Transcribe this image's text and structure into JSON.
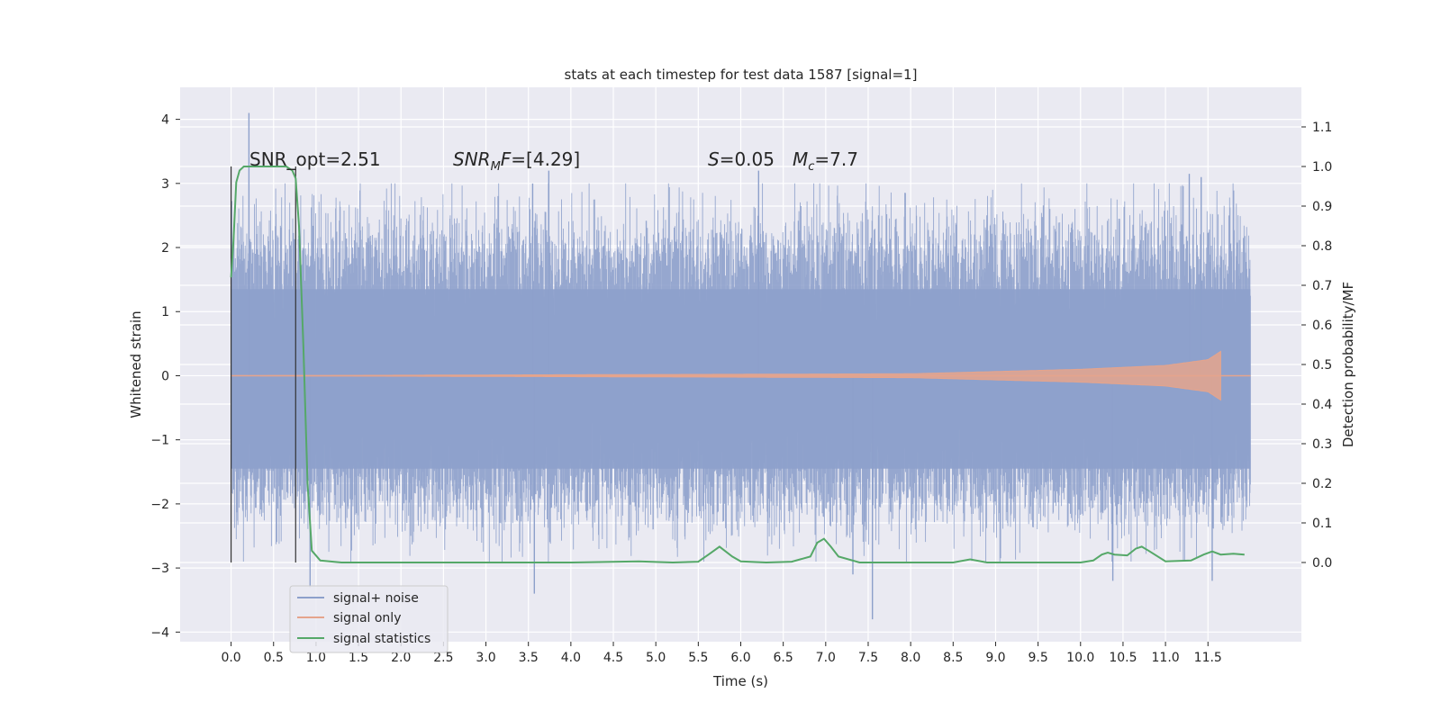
{
  "chart_data": {
    "type": "line",
    "title": "stats at each timestep for test data 1587 [signal=1]",
    "xlabel": "Time (s)",
    "ylabel_left": "Whitened strain",
    "ylabel_right": "Detection probability/MF",
    "xlim": [
      -0.6,
      12.6
    ],
    "ylim_left": [
      -4.15,
      4.5
    ],
    "ylim_right": [
      -0.2,
      1.2
    ],
    "x_ticks": [
      "0.0",
      "0.5",
      "1.0",
      "1.5",
      "2.0",
      "2.5",
      "3.0",
      "3.5",
      "4.0",
      "4.5",
      "5.0",
      "5.5",
      "6.0",
      "6.5",
      "7.0",
      "7.5",
      "8.0",
      "8.5",
      "9.0",
      "9.5",
      "10.0",
      "10.5",
      "11.0",
      "11.5"
    ],
    "y_ticks_left": [
      "4",
      "3",
      "2",
      "1",
      "0",
      "−1",
      "−2",
      "−3",
      "−4"
    ],
    "y_ticks_right": [
      "1.1",
      "1.0",
      "0.9",
      "0.8",
      "0.7",
      "0.6",
      "0.5",
      "0.4",
      "0.3",
      "0.2",
      "0.1",
      "0.0"
    ],
    "grid": true,
    "legend_position": "bottom-left",
    "annotations": {
      "snr_opt": "SNR_opt=2.51",
      "snr_mf": "=[4.29]",
      "snr_mf_symbol": "SNR",
      "snr_mf_subscript": "M",
      "snr_mf_suffix": "F",
      "s_symbol": "S",
      "s_value": "=0.05",
      "mc_symbol": "M",
      "mc_subscript": "c",
      "mc_value": "=7.7"
    },
    "vertical_markers_x": [
      0.0,
      0.76
    ],
    "series": [
      {
        "name": "signal+ noise",
        "color": "#8da0cb",
        "axis": "left",
        "x_range": [
          0.0,
          12.0
        ],
        "typical_band": [
          -1.5,
          1.9
        ],
        "peaks": [
          {
            "x": 0.21,
            "y": 4.1
          },
          {
            "x": 3.74,
            "y": 3.2
          },
          {
            "x": 3.55,
            "y": 3.0
          },
          {
            "x": 6.21,
            "y": 3.2
          },
          {
            "x": 11.28,
            "y": 3.15
          },
          {
            "x": 11.42,
            "y": 3.1
          },
          {
            "x": 3.57,
            "y": -3.4
          },
          {
            "x": 7.55,
            "y": -3.8
          },
          {
            "x": 10.38,
            "y": -3.2
          },
          {
            "x": 11.55,
            "y": -3.2
          },
          {
            "x": 0.93,
            "y": -3.3
          },
          {
            "x": 7.32,
            "y": -3.1
          }
        ]
      },
      {
        "name": "signal only",
        "color": "#e5a48c",
        "axis": "left",
        "description_points": [
          {
            "x": 0.0,
            "amp": 0.0
          },
          {
            "x": 8.0,
            "amp": 0.03
          },
          {
            "x": 10.0,
            "amp": 0.1
          },
          {
            "x": 11.0,
            "amp": 0.16
          },
          {
            "x": 11.5,
            "amp": 0.25
          },
          {
            "x": 11.65,
            "amp": 0.38
          },
          {
            "x": 11.66,
            "amp": 0.0
          }
        ]
      },
      {
        "name": "signal statistics",
        "color": "#55a868",
        "axis": "right",
        "x": [
          0.0,
          0.03,
          0.06,
          0.1,
          0.15,
          0.25,
          0.4,
          0.55,
          0.65,
          0.72,
          0.76,
          0.8,
          0.85,
          0.9,
          0.95,
          1.05,
          1.3,
          2.5,
          4.0,
          4.8,
          5.2,
          5.5,
          5.62,
          5.75,
          5.9,
          6.0,
          6.3,
          6.6,
          6.82,
          6.9,
          6.98,
          7.06,
          7.15,
          7.4,
          8.0,
          8.5,
          8.7,
          8.9,
          9.5,
          10.0,
          10.15,
          10.25,
          10.32,
          10.4,
          10.55,
          10.65,
          10.72,
          10.8,
          11.0,
          11.3,
          11.45,
          11.55,
          11.65,
          11.8,
          11.93
        ],
        "y": [
          0.72,
          0.82,
          0.96,
          0.99,
          1.0,
          1.0,
          1.0,
          1.0,
          1.0,
          0.99,
          0.97,
          0.85,
          0.55,
          0.2,
          0.03,
          0.005,
          0.0,
          0.0,
          0.0,
          0.003,
          0.0,
          0.002,
          0.02,
          0.04,
          0.015,
          0.003,
          0.0,
          0.002,
          0.015,
          0.05,
          0.06,
          0.04,
          0.015,
          0.0,
          0.0,
          0.0,
          0.008,
          0.0,
          0.0,
          0.0,
          0.005,
          0.02,
          0.025,
          0.02,
          0.018,
          0.035,
          0.04,
          0.03,
          0.003,
          0.005,
          0.02,
          0.028,
          0.02,
          0.022,
          0.02
        ]
      }
    ]
  }
}
